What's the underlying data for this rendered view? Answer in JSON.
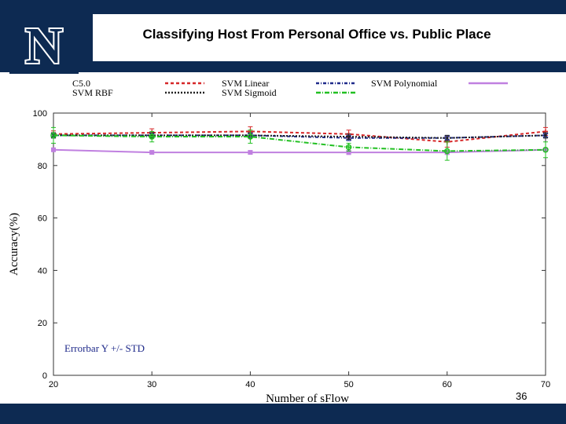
{
  "slide": {
    "title": "Classifying Host From Personal Office vs. Public Place",
    "number": "36",
    "logo_label": "N",
    "colors": {
      "bar": "#0d2a52",
      "logo_white": "#ffffff"
    }
  },
  "chart_data": {
    "type": "line",
    "title": "Classifying Host From Personal Office vs. Public Place",
    "xlabel": "Number of sFlow",
    "ylabel": "Accuracy(%)",
    "x": [
      20,
      30,
      40,
      50,
      60,
      70
    ],
    "xlim": [
      20,
      70
    ],
    "ylim": [
      0,
      100
    ],
    "xticks": [
      "20",
      "30",
      "40",
      "50",
      "60",
      "70"
    ],
    "yticks": [
      "0",
      "20",
      "40",
      "60",
      "80",
      "100"
    ],
    "grid": false,
    "legend_position": "top",
    "annotation": "Errorbar Y +/- STD",
    "annotation_color": "#1f2a8a",
    "series": [
      {
        "name": "C5.0",
        "color": "#d62728",
        "dash": "4,3",
        "marker": "cross",
        "values": [
          92,
          92.5,
          93,
          92,
          89,
          93
        ],
        "err": [
          1.2,
          1.5,
          1.8,
          1.5,
          2.0,
          1.5
        ]
      },
      {
        "name": "SVM Linear",
        "color": "#1f2a8a",
        "dash": "4,2,1,2",
        "marker": "star",
        "values": [
          91.5,
          91.5,
          91.5,
          90.5,
          90.5,
          91.5
        ],
        "err": [
          1.0,
          1.0,
          1.0,
          1.0,
          1.0,
          1.0
        ]
      },
      {
        "name": "SVM Polynomial",
        "color": "#c080e0",
        "dash": "",
        "marker": "square",
        "values": [
          86,
          85,
          85,
          85,
          85,
          86
        ],
        "err": [
          0.6,
          0.6,
          0.6,
          0.8,
          0.8,
          0.6
        ]
      },
      {
        "name": "SVM RBF",
        "color": "#222222",
        "dash": "2,2",
        "marker": "dot",
        "values": [
          91.5,
          91.5,
          91.5,
          91,
          90.5,
          91.5
        ],
        "err": [
          1.0,
          1.0,
          1.0,
          1.0,
          1.0,
          1.0
        ]
      },
      {
        "name": "SVM Sigmoid",
        "color": "#22c022",
        "dash": "6,2,1,2",
        "marker": "circle",
        "values": [
          91.5,
          91,
          91,
          87,
          85.5,
          86
        ],
        "err": [
          3.0,
          2.0,
          2.5,
          1.5,
          3.5,
          3.0
        ]
      }
    ]
  }
}
